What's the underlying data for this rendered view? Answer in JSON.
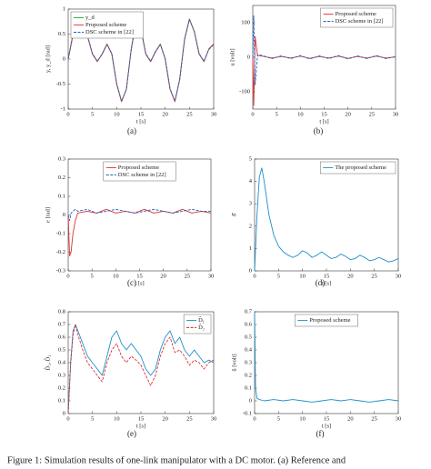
{
  "caption": "Figure 1: Simulation results of one-link manipulator with a DC motor. (a) Reference and",
  "chart_data": [
    {
      "type": "line",
      "label": "(a)",
      "xlabel": "t [s]",
      "ylabel": "y, y_d [rad]",
      "legend": "upper left",
      "xlim": [
        0,
        30
      ],
      "xticks": [
        0,
        5,
        10,
        15,
        20,
        25,
        30
      ],
      "ylim": [
        -1,
        1
      ],
      "yticks": [
        -1,
        -0.5,
        0,
        0.5,
        1
      ],
      "x": [
        0,
        1,
        2,
        3,
        4,
        5,
        6,
        7,
        8,
        9,
        10,
        11,
        12,
        13,
        14,
        15,
        16,
        17,
        18,
        19,
        20,
        21,
        22,
        23,
        24,
        25,
        26,
        27,
        28,
        29,
        30
      ],
      "series": [
        {
          "name": "y_d",
          "color": "#22aa22",
          "dash": false,
          "values": [
            0,
            0.5,
            0.8,
            0.75,
            0.45,
            0.1,
            -0.05,
            0.1,
            0.3,
            0.1,
            -0.5,
            -0.85,
            -0.6,
            0.2,
            0.75,
            0.6,
            0.1,
            -0.05,
            0.15,
            0.3,
            0.0,
            -0.6,
            -0.85,
            -0.4,
            0.4,
            0.8,
            0.55,
            0.1,
            -0.05,
            0.2,
            0.3
          ]
        },
        {
          "name": "Proposed scheme",
          "color": "#e03030",
          "dash": false,
          "values": [
            0,
            0.5,
            0.8,
            0.75,
            0.45,
            0.1,
            -0.05,
            0.1,
            0.3,
            0.1,
            -0.5,
            -0.85,
            -0.6,
            0.2,
            0.75,
            0.6,
            0.1,
            -0.05,
            0.15,
            0.3,
            0.0,
            -0.6,
            -0.85,
            -0.4,
            0.4,
            0.8,
            0.55,
            0.1,
            -0.05,
            0.2,
            0.3
          ]
        },
        {
          "name": "DSC scheme in [22]",
          "color": "#2060c0",
          "dash": true,
          "values": [
            0,
            0.48,
            0.79,
            0.76,
            0.46,
            0.11,
            -0.04,
            0.1,
            0.29,
            0.11,
            -0.49,
            -0.84,
            -0.61,
            0.19,
            0.74,
            0.61,
            0.11,
            -0.04,
            0.14,
            0.29,
            0.01,
            -0.59,
            -0.84,
            -0.41,
            0.39,
            0.79,
            0.56,
            0.11,
            -0.04,
            0.19,
            0.29
          ]
        }
      ]
    },
    {
      "type": "line",
      "label": "(b)",
      "xlabel": "t [s]",
      "ylabel": "u [volt]",
      "legend": "upper right",
      "xlim": [
        0,
        30
      ],
      "xticks": [
        0,
        5,
        10,
        15,
        20,
        25,
        30
      ],
      "ylim": [
        -150,
        150
      ],
      "yticks": [
        -100,
        0,
        100
      ],
      "x": [
        0,
        0.2,
        0.5,
        1,
        2,
        4,
        6,
        8,
        10,
        12,
        14,
        16,
        18,
        20,
        22,
        24,
        26,
        28,
        30
      ],
      "series": [
        {
          "name": "Proposed scheme",
          "color": "#e03030",
          "dash": false,
          "values": [
            0,
            -140,
            60,
            5,
            3,
            -2,
            2,
            -2,
            3,
            -3,
            2,
            -2,
            3,
            -3,
            2,
            -2,
            3,
            -2,
            1
          ]
        },
        {
          "name": "DSC scheme in [22]",
          "color": "#2060c0",
          "dash": true,
          "values": [
            0,
            120,
            -80,
            8,
            5,
            -4,
            4,
            -4,
            5,
            -5,
            4,
            -4,
            5,
            -5,
            4,
            -4,
            5,
            -4,
            2
          ]
        }
      ]
    },
    {
      "type": "line",
      "label": "(c)",
      "xlabel": "t [s]",
      "ylabel": "e [rad]",
      "legend": "upper center",
      "xlim": [
        0,
        30
      ],
      "xticks": [
        0,
        5,
        10,
        15,
        20,
        25,
        30
      ],
      "ylim": [
        -0.3,
        0.3
      ],
      "yticks": [
        -0.3,
        -0.2,
        -0.1,
        0,
        0.1,
        0.2,
        0.3
      ],
      "x": [
        0,
        0.3,
        0.6,
        1,
        1.5,
        2,
        4,
        6,
        8,
        10,
        12,
        14,
        16,
        18,
        20,
        22,
        24,
        26,
        28,
        30
      ],
      "series": [
        {
          "name": "Proposed scheme",
          "color": "#e03030",
          "dash": false,
          "values": [
            0,
            -0.22,
            -0.2,
            -0.1,
            -0.03,
            0.01,
            0.02,
            0.01,
            0.03,
            0.01,
            0.02,
            0.01,
            0.03,
            0.01,
            0.02,
            0.01,
            0.03,
            0.01,
            0.02,
            0.01
          ]
        },
        {
          "name": "DSC scheme in [22]",
          "color": "#2060c0",
          "dash": true,
          "values": [
            0,
            -0.03,
            0.01,
            0.02,
            0.03,
            0.02,
            0.03,
            0.01,
            0.02,
            0.03,
            0.02,
            0.01,
            0.02,
            0.03,
            0.02,
            0.01,
            0.02,
            0.03,
            0.02,
            0.02
          ]
        }
      ]
    },
    {
      "type": "line",
      "label": "(d)",
      "xlabel": "t [s]",
      "ylabel": "δ̂",
      "legend": "upper right",
      "xlim": [
        0,
        30
      ],
      "xticks": [
        0,
        5,
        10,
        15,
        20,
        25,
        30
      ],
      "ylim": [
        0,
        5
      ],
      "yticks": [
        0,
        1,
        2,
        3,
        4,
        5
      ],
      "x": [
        0,
        0.5,
        1,
        1.5,
        2,
        3,
        4,
        5,
        6,
        7,
        8,
        9,
        10,
        11,
        12,
        13,
        14,
        15,
        16,
        17,
        18,
        19,
        20,
        21,
        22,
        23,
        24,
        25,
        26,
        27,
        28,
        29,
        30
      ],
      "series": [
        {
          "name": "The proposed scheme",
          "color": "#1f8fc8",
          "dash": false,
          "values": [
            0,
            2.5,
            4.2,
            4.6,
            4.0,
            2.5,
            1.6,
            1.1,
            0.85,
            0.7,
            0.6,
            0.7,
            0.9,
            0.8,
            0.6,
            0.7,
            0.85,
            0.7,
            0.55,
            0.6,
            0.75,
            0.65,
            0.5,
            0.55,
            0.7,
            0.6,
            0.45,
            0.5,
            0.6,
            0.5,
            0.4,
            0.45,
            0.55
          ]
        }
      ]
    },
    {
      "type": "line",
      "label": "(e)",
      "xlabel": "t [s]",
      "ylabel": "D̂₁, D̂₂",
      "legend": "upper right",
      "xlim": [
        0,
        30
      ],
      "xticks": [
        0,
        5,
        10,
        15,
        20,
        25,
        30
      ],
      "ylim": [
        0,
        0.8
      ],
      "yticks": [
        0,
        0.1,
        0.2,
        0.3,
        0.4,
        0.5,
        0.6,
        0.7,
        0.8
      ],
      "x": [
        0,
        0.5,
        1,
        1.5,
        2,
        3,
        4,
        5,
        6,
        7,
        8,
        9,
        10,
        11,
        12,
        13,
        14,
        15,
        16,
        17,
        18,
        19,
        20,
        21,
        22,
        23,
        24,
        25,
        26,
        27,
        28,
        29,
        30
      ],
      "series": [
        {
          "name": "D̂₁",
          "color": "#1f8fc8",
          "dash": false,
          "values": [
            0,
            0.4,
            0.65,
            0.7,
            0.65,
            0.55,
            0.45,
            0.4,
            0.35,
            0.3,
            0.45,
            0.6,
            0.65,
            0.55,
            0.5,
            0.55,
            0.5,
            0.45,
            0.35,
            0.3,
            0.35,
            0.5,
            0.6,
            0.65,
            0.55,
            0.6,
            0.5,
            0.45,
            0.5,
            0.45,
            0.4,
            0.42,
            0.4
          ]
        },
        {
          "name": "D̂₂",
          "color": "#e03030",
          "dash": true,
          "values": [
            0,
            0.38,
            0.62,
            0.7,
            0.62,
            0.5,
            0.4,
            0.35,
            0.3,
            0.25,
            0.4,
            0.5,
            0.55,
            0.45,
            0.4,
            0.45,
            0.42,
            0.38,
            0.3,
            0.22,
            0.3,
            0.45,
            0.55,
            0.6,
            0.48,
            0.5,
            0.45,
            0.38,
            0.42,
            0.4,
            0.35,
            0.4,
            0.42
          ]
        }
      ]
    },
    {
      "type": "line",
      "label": "(f)",
      "xlabel": "t [s]",
      "ylabel": "ũ [volt]",
      "legend": "upper center",
      "xlim": [
        0,
        30
      ],
      "xticks": [
        0,
        5,
        10,
        15,
        20,
        25,
        30
      ],
      "ylim": [
        -0.1,
        0.7
      ],
      "yticks": [
        -0.1,
        0,
        0.1,
        0.2,
        0.3,
        0.4,
        0.5,
        0.6,
        0.7
      ],
      "x": [
        0,
        0.2,
        0.5,
        1,
        2,
        4,
        6,
        8,
        10,
        12,
        14,
        16,
        18,
        20,
        22,
        24,
        26,
        28,
        30
      ],
      "series": [
        {
          "name": "Proposed scheme",
          "color": "#1f8fc8",
          "dash": false,
          "values": [
            0.7,
            0.1,
            0.02,
            0.01,
            0.0,
            0.01,
            0.0,
            0.01,
            0.0,
            -0.01,
            0.0,
            0.01,
            0.0,
            0.01,
            0.0,
            -0.01,
            0.0,
            0.01,
            0.0
          ]
        }
      ]
    }
  ]
}
